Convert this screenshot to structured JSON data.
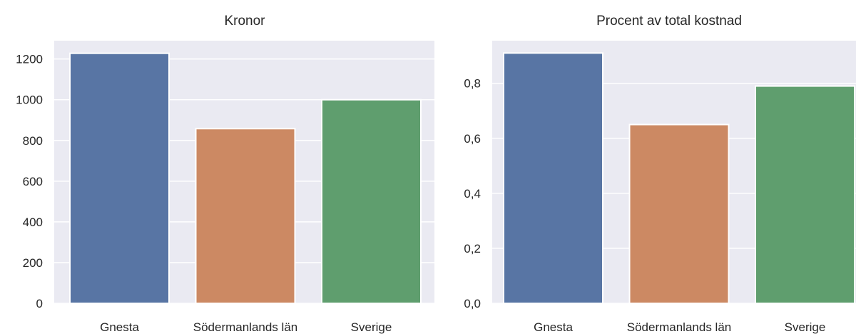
{
  "chart_data": [
    {
      "type": "bar",
      "title": "Kronor",
      "categories": [
        "Gnesta",
        "Södermanlands län",
        "Sverige"
      ],
      "values": [
        1228,
        858,
        1000
      ],
      "ylim": [
        0,
        1290
      ],
      "yticks": [
        0,
        200,
        400,
        600,
        800,
        1000,
        1200
      ],
      "ytick_labels": [
        "0",
        "200",
        "400",
        "600",
        "800",
        "1000",
        "1200"
      ],
      "grid": true,
      "colors": [
        "#5875a4",
        "#cc8963",
        "#5f9e6e"
      ],
      "background": "#eaeaf2"
    },
    {
      "type": "bar",
      "title": "Procent av total kostnad",
      "categories": [
        "Gnesta",
        "Södermanlands län",
        "Sverige"
      ],
      "values": [
        0.91,
        0.65,
        0.79
      ],
      "ylim": [
        0,
        0.955
      ],
      "yticks": [
        0,
        0.2,
        0.4,
        0.6,
        0.8
      ],
      "ytick_labels": [
        "0,0",
        "0,2",
        "0,4",
        "0,6",
        "0,8"
      ],
      "grid": true,
      "colors": [
        "#5875a4",
        "#cc8963",
        "#5f9e6e"
      ],
      "background": "#eaeaf2"
    }
  ]
}
